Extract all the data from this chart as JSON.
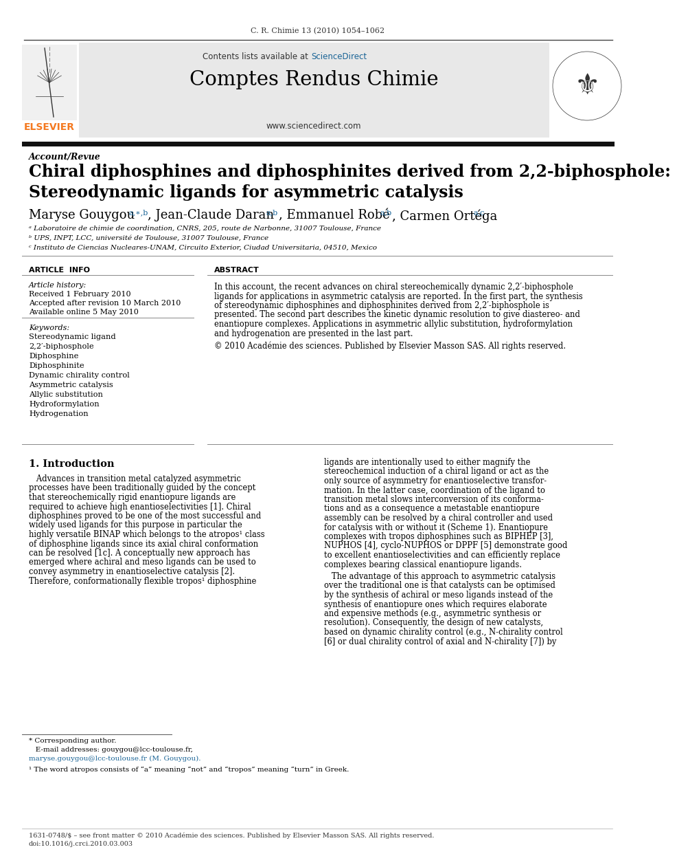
{
  "journal_ref": "C. R. Chimie 13 (2010) 1054–1062",
  "contents_label": "Contents lists available at ",
  "sciencedirect_label": "ScienceDirect",
  "journal_name": "Comptes Rendus Chimie",
  "journal_url": "www.sciencedirect.com",
  "section_label": "Account/Revue",
  "title_line1": "Chiral diphosphines and diphosphinites derived from 2,2-biphosphole:",
  "title_line2": "Stereodynamic ligands for asymmetric catalysis",
  "affil_a": "ᵃ Laboratoire de chimie de coordination, CNRS, 205, route de Narbonne, 31007 Toulouse, France",
  "affil_b": "ᵇ UPS, INPT, LCC, université de Toulouse, 31007 Toulouse, France",
  "affil_c": "ᶜ Instituto de Ciencias Nucleares-UNAM, Circuito Exterior, Ciudad Universitaria, 04510, Mexico",
  "article_info_title": "ARTICLE  INFO",
  "abstract_title": "ABSTRACT",
  "article_history_label": "Article history:",
  "received": "Received 1 February 2010",
  "accepted": "Accepted after revision 10 March 2010",
  "available": "Available online 5 May 2010",
  "keywords_label": "Keywords:",
  "keywords": [
    "Stereodynamic ligand",
    "2,2′-biphosphole",
    "Diphosphine",
    "Diphosphinite",
    "Dynamic chirality control",
    "Asymmetric catalysis",
    "Allylic substitution",
    "Hydroformylation",
    "Hydrogenation"
  ],
  "abstract_copyright": "© 2010 Académie des sciences. Published by Elsevier Masson SAS. All rights reserved.",
  "intro_heading": "1. Introduction",
  "footnote_star": "* Corresponding author.",
  "footnote_email": "   E-mail addresses: gouygou@lcc-toulouse.fr,",
  "footnote_email2": "maryse.gouygou@lcc-toulouse.fr (M. Gouygou).",
  "footnote_1": "¹ The word atropos consists of “a” meaning “not” and “tropos” meaning “turn” in Greek.",
  "footer_issn": "1631-0748/$ – see front matter © 2010 Académie des sciences. Published by Elsevier Masson SAS. All rights reserved.",
  "footer_doi": "doi:10.1016/j.crci.2010.03.003",
  "bg_color": "#ffffff",
  "header_bg": "#e8e8e8",
  "black": "#000000",
  "dark_gray": "#333333",
  "elsevier_orange": "#f47920",
  "sciencedirect_blue": "#1a6496",
  "section_bar_color": "#111111",
  "abstract_lines": [
    "In this account, the recent advances on chiral stereochemically dynamic 2,2′-biphosphole",
    "ligands for applications in asymmetric catalysis are reported. In the first part, the synthesis",
    "of stereodynamic diphosphines and diphosphinites derived from 2,2′-biphosphole is",
    "presented. The second part describes the kinetic dynamic resolution to give diastereo- and",
    "enantiopure complexes. Applications in asymmetric allylic substitution, hydroformylation",
    "and hydrogenation are presented in the last part."
  ],
  "intro_col1_lines": [
    "   Advances in transition metal catalyzed asymmetric",
    "processes have been traditionally guided by the concept",
    "that stereochemically rigid enantiopure ligands are",
    "required to achieve high enantioselectivities [1]. Chiral",
    "diphosphines proved to be one of the most successful and",
    "widely used ligands for this purpose in particular the",
    "highly versatile BINAP which belongs to the atropos¹ class",
    "of diphosphine ligands since its axial chiral conformation",
    "can be resolved [1c]. A conceptually new approach has",
    "emerged where achiral and meso ligands can be used to",
    "convey asymmetry in enantioselective catalysis [2].",
    "Therefore, conformationally flexible tropos¹ diphosphine"
  ],
  "intro_col2_lines": [
    "ligands are intentionally used to either magnify the",
    "stereochemical induction of a chiral ligand or act as the",
    "only source of asymmetry for enantioselective transfor-",
    "mation. In the latter case, coordination of the ligand to",
    "transition metal slows interconversion of its conforma-",
    "tions and as a consequence a metastable enantiopure",
    "assembly can be resolved by a chiral controller and used",
    "for catalysis with or without it (Scheme 1). Enantiopure",
    "complexes with tropos diphosphines such as BIPHEP [3],",
    "NUPHOS [4], cyclo-NUPHOS or DPPF [5] demonstrate good",
    "to excellent enantioselectivities and can efficiently replace",
    "complexes bearing classical enantiopure ligands."
  ],
  "intro_col2b_lines": [
    "   The advantage of this approach to asymmetric catalysis",
    "over the traditional one is that catalysts can be optimised",
    "by the synthesis of achiral or meso ligands instead of the",
    "synthesis of enantiopure ones which requires elaborate",
    "and expensive methods (e.g., asymmetric synthesis or",
    "resolution). Consequently, the design of new catalysts,",
    "based on dynamic chirality control (e.g., N-chirality control",
    "[6] or dual chirality control of axial and N-chirality [7]) by"
  ]
}
